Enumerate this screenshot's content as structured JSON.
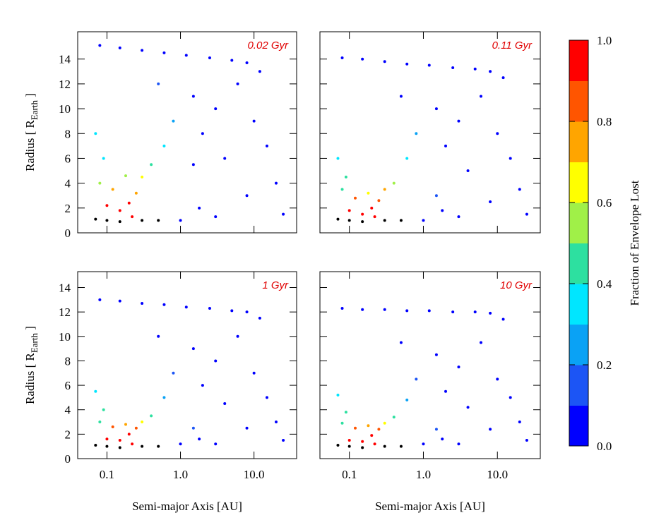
{
  "chart_data": [
    {
      "type": "scatter",
      "label": "0.02 Gyr",
      "ylabel": {
        "text": "Radius  [ R",
        "sub": "Earth",
        "end": " ]"
      },
      "xlim": [
        0.04,
        38
      ],
      "ylim": [
        0,
        16.2
      ],
      "log_x": true,
      "xticks": [
        0.1,
        {
          "value": 1,
          "label": "1.0"
        },
        {
          "value": 10,
          "label": "10.0"
        }
      ],
      "yticks": [
        0,
        2,
        4,
        6,
        8,
        10,
        12,
        14
      ],
      "x": [
        0.08,
        0.15,
        0.3,
        0.6,
        1.2,
        2.5,
        5,
        8,
        12,
        0.5,
        1.5,
        3,
        6,
        10,
        15,
        20,
        25,
        4,
        8,
        2,
        1.8,
        3,
        0.8,
        0.6,
        0.4,
        0.3,
        0.25,
        0.2,
        0.15,
        0.1,
        0.08,
        0.07,
        0.12,
        0.18,
        0.09,
        0.22,
        0.07,
        0.1,
        0.15,
        0.3,
        0.5,
        1,
        1.5
      ],
      "y": [
        15.1,
        14.9,
        14.7,
        14.5,
        14.3,
        14.1,
        13.9,
        13.7,
        13,
        12,
        11,
        10,
        12,
        9,
        7,
        4,
        1.5,
        6,
        3,
        8,
        2,
        1.3,
        9,
        7,
        5.5,
        4.5,
        3.2,
        2.4,
        1.8,
        2.2,
        4,
        8,
        3.5,
        4.6,
        6,
        1.3,
        1.1,
        1,
        0.9,
        1,
        1,
        1,
        5.5
      ],
      "fraction": [
        0.05,
        0.02,
        0.03,
        0.02,
        0.02,
        0.02,
        0.02,
        0.02,
        0.02,
        0.1,
        0.05,
        0.03,
        0.02,
        0.02,
        0.02,
        0.01,
        0.01,
        0.03,
        0.02,
        0.05,
        0.02,
        0.02,
        0.2,
        0.3,
        0.45,
        0.6,
        0.75,
        0.9,
        0.95,
        0.95,
        0.5,
        0.3,
        0.7,
        0.5,
        0.35,
        1,
        null,
        null,
        null,
        null,
        null,
        0.05,
        0.05
      ]
    },
    {
      "type": "scatter",
      "label": "0.11 Gyr",
      "xlim": [
        0.04,
        38
      ],
      "ylim": [
        0,
        16.2
      ],
      "log_x": true,
      "xticks": [
        0.1,
        {
          "value": 1,
          "label": "1.0"
        },
        {
          "value": 10,
          "label": "10.0"
        }
      ],
      "yticks": [
        0,
        2,
        4,
        6,
        8,
        10,
        12,
        14
      ],
      "x": [
        0.08,
        0.15,
        0.3,
        0.6,
        1.2,
        2.5,
        5,
        8,
        12,
        0.5,
        1.5,
        3,
        6,
        10,
        15,
        20,
        25,
        4,
        8,
        2,
        1.8,
        3,
        0.8,
        0.6,
        0.4,
        0.3,
        0.25,
        0.2,
        0.15,
        0.1,
        0.08,
        0.07,
        0.12,
        0.18,
        0.09,
        0.22,
        0.07,
        0.1,
        0.15,
        0.3,
        0.5,
        1,
        1.5
      ],
      "y": [
        14.1,
        14,
        13.8,
        13.6,
        13.5,
        13.3,
        13.2,
        13,
        12.5,
        11,
        10,
        9,
        11,
        8,
        6,
        3.5,
        1.5,
        5,
        2.5,
        7,
        1.8,
        1.3,
        8,
        6,
        4,
        3.5,
        2.6,
        2,
        1.5,
        1.8,
        3.5,
        6,
        2.8,
        3.2,
        4.5,
        1.3,
        1.1,
        1,
        0.9,
        1,
        1,
        1,
        3
      ],
      "fraction": [
        0.03,
        0.02,
        0.02,
        0.02,
        0.02,
        0.02,
        0.02,
        0.02,
        0.02,
        0.08,
        0.05,
        0.03,
        0.02,
        0.02,
        0.02,
        0.01,
        0.01,
        0.03,
        0.02,
        0.05,
        0.02,
        0.02,
        0.25,
        0.3,
        0.5,
        0.7,
        0.85,
        0.95,
        1,
        1,
        0.4,
        0.3,
        0.8,
        0.6,
        0.4,
        1,
        null,
        null,
        null,
        null,
        null,
        0.05,
        0.1
      ]
    },
    {
      "type": "scatter",
      "label": "1 Gyr",
      "ylabel": {
        "text": "Radius  [ R",
        "sub": "Earth",
        "end": " ]"
      },
      "xlabel": "Semi-major Axis  [AU]",
      "xlim": [
        0.04,
        38
      ],
      "ylim": [
        0,
        15.3
      ],
      "log_x": true,
      "xticks": [
        0.1,
        {
          "value": 1,
          "label": "1.0"
        },
        {
          "value": 10,
          "label": "10.0"
        }
      ],
      "yticks": [
        0,
        2,
        4,
        6,
        8,
        10,
        12,
        14
      ],
      "x": [
        0.08,
        0.15,
        0.3,
        0.6,
        1.2,
        2.5,
        5,
        8,
        12,
        0.5,
        1.5,
        3,
        6,
        10,
        15,
        20,
        25,
        4,
        8,
        2,
        1.8,
        3,
        0.8,
        0.6,
        0.4,
        0.3,
        0.25,
        0.2,
        0.15,
        0.1,
        0.08,
        0.07,
        0.12,
        0.18,
        0.09,
        0.22,
        0.07,
        0.1,
        0.15,
        0.3,
        0.5,
        1,
        1.5
      ],
      "y": [
        13,
        12.9,
        12.7,
        12.6,
        12.4,
        12.3,
        12.1,
        12,
        11.5,
        10,
        9,
        8,
        10,
        7,
        5,
        3,
        1.5,
        4.5,
        2.5,
        6,
        1.6,
        1.2,
        7,
        5,
        3.5,
        3,
        2.5,
        2,
        1.5,
        1.6,
        3,
        5.5,
        2.6,
        2.8,
        4,
        1.2,
        1.1,
        1,
        0.9,
        1,
        1,
        1.2,
        2.5
      ],
      "fraction": [
        0.03,
        0.02,
        0.02,
        0.02,
        0.02,
        0.02,
        0.02,
        0.02,
        0.02,
        0.06,
        0.04,
        0.03,
        0.02,
        0.02,
        0.02,
        0.01,
        0.01,
        0.03,
        0.02,
        0.05,
        0.02,
        0.02,
        0.15,
        0.2,
        0.4,
        0.6,
        0.85,
        0.95,
        1,
        1,
        0.45,
        0.3,
        0.8,
        0.7,
        0.4,
        1,
        null,
        null,
        null,
        null,
        null,
        0.05,
        0.1
      ]
    },
    {
      "type": "scatter",
      "label": "10 Gyr",
      "xlabel": "Semi-major Axis  [AU]",
      "xlim": [
        0.04,
        38
      ],
      "ylim": [
        0,
        15.3
      ],
      "log_x": true,
      "xticks": [
        0.1,
        {
          "value": 1,
          "label": "1.0"
        },
        {
          "value": 10,
          "label": "10.0"
        }
      ],
      "yticks": [
        0,
        2,
        4,
        6,
        8,
        10,
        12,
        14
      ],
      "x": [
        0.08,
        0.15,
        0.3,
        0.6,
        1.2,
        2.5,
        5,
        8,
        12,
        0.5,
        1.5,
        3,
        6,
        10,
        15,
        20,
        25,
        4,
        8,
        2,
        1.8,
        3,
        0.8,
        0.6,
        0.4,
        0.3,
        0.25,
        0.2,
        0.15,
        0.1,
        0.08,
        0.07,
        0.12,
        0.18,
        0.09,
        0.22,
        0.07,
        0.1,
        0.15,
        0.3,
        0.5,
        1,
        1.5
      ],
      "y": [
        12.3,
        12.2,
        12.2,
        12.1,
        12.1,
        12,
        12,
        11.9,
        11.4,
        9.5,
        8.5,
        7.5,
        9.5,
        6.5,
        5,
        3,
        1.5,
        4.2,
        2.4,
        5.5,
        1.6,
        1.2,
        6.5,
        4.8,
        3.4,
        2.9,
        2.4,
        1.9,
        1.4,
        1.5,
        2.9,
        5.2,
        2.5,
        2.7,
        3.8,
        1.2,
        1.1,
        1,
        0.9,
        1,
        1,
        1.2,
        2.4
      ],
      "fraction": [
        0.03,
        0.02,
        0.02,
        0.02,
        0.02,
        0.02,
        0.02,
        0.02,
        0.02,
        0.06,
        0.04,
        0.03,
        0.02,
        0.02,
        0.02,
        0.01,
        0.01,
        0.03,
        0.02,
        0.05,
        0.02,
        0.02,
        0.15,
        0.2,
        0.4,
        0.6,
        0.85,
        0.95,
        1,
        1,
        0.45,
        0.3,
        0.8,
        0.7,
        0.4,
        1,
        null,
        null,
        null,
        null,
        null,
        0.05,
        0.1
      ]
    }
  ],
  "colorbar": {
    "label": "Fraction of Envelope Lost",
    "lim": [
      0,
      1
    ],
    "ticks": [
      {
        "value": 0,
        "label": "0.0"
      },
      0.2,
      0.4,
      0.6,
      0.8,
      {
        "value": 1,
        "label": "1.0"
      }
    ],
    "colors": [
      "#0000ff",
      "#1c55f5",
      "#0aa2f5",
      "#00e6ff",
      "#2de0a0",
      "#a0f048",
      "#ffff00",
      "#ffa500",
      "#ff5500",
      "#ff0000"
    ],
    "null_color": "#000000"
  }
}
